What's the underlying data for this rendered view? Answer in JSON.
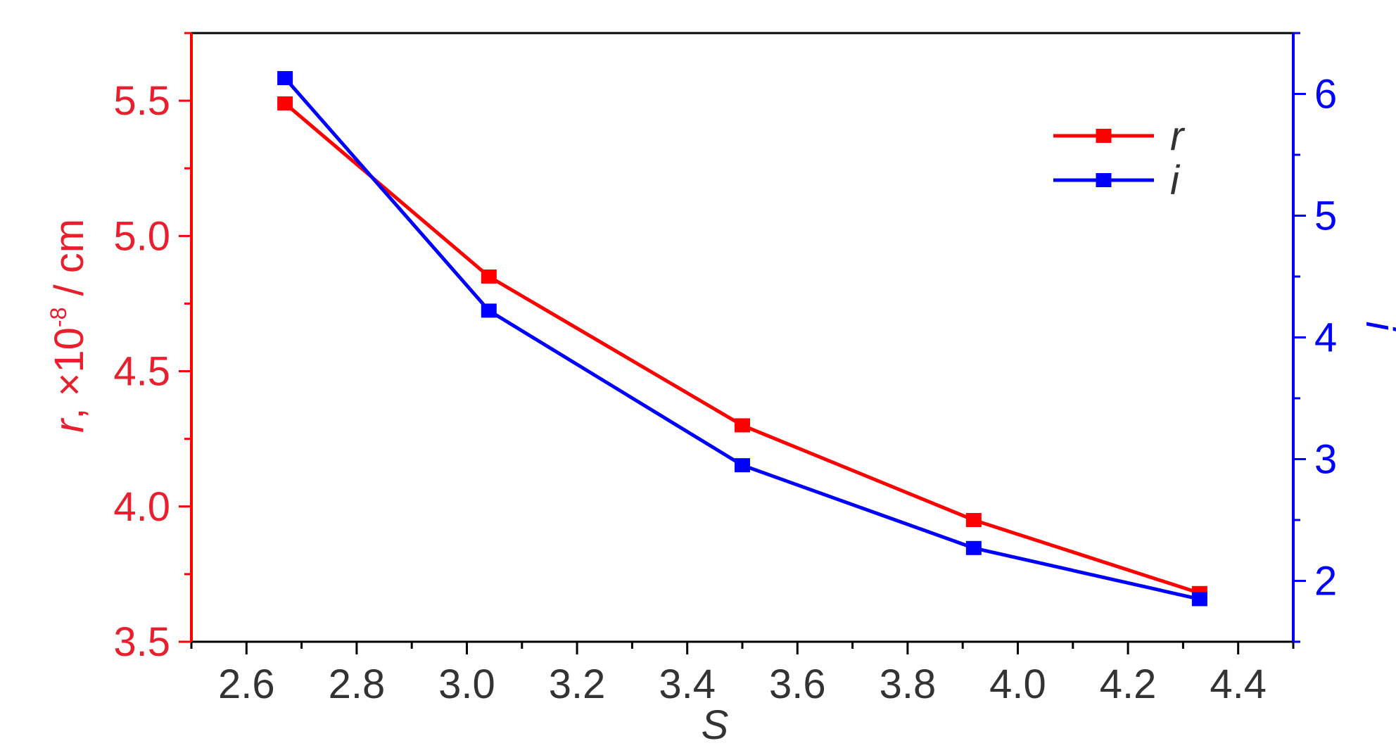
{
  "chart_data": {
    "type": "line",
    "xlabel": "S",
    "ylabel_left": {
      "var": "r",
      "rest": ", ×10",
      "exp": "-8",
      "unit": " / cm"
    },
    "ylabel_right": "i",
    "xlim": [
      2.5,
      4.5
    ],
    "ylim_left": [
      3.5,
      5.75
    ],
    "ylim_right": [
      1.5,
      6.5
    ],
    "xticks": [
      "2.6",
      "2.8",
      "3.0",
      "3.2",
      "3.4",
      "3.6",
      "3.8",
      "4.0",
      "4.2",
      "4.4"
    ],
    "yticks_left": [
      "3.5",
      "4.0",
      "4.5",
      "5.0",
      "5.5"
    ],
    "yticks_right": [
      "2",
      "3",
      "4",
      "5",
      "6"
    ],
    "x": [
      2.67,
      3.04,
      3.5,
      3.92,
      4.33
    ],
    "series": [
      {
        "name": "r",
        "axis": "left",
        "color": "#ff0000",
        "values": [
          5.49,
          4.85,
          4.3,
          3.95,
          3.68
        ]
      },
      {
        "name": "i",
        "axis": "right",
        "color": "#0000ff",
        "values": [
          6.13,
          4.22,
          2.95,
          2.27,
          1.85
        ]
      }
    ],
    "legend_position": "top-right",
    "grid": false,
    "colors": {
      "left_axis": "#ff0000",
      "left_text": "#e8202e",
      "right_axis": "#0000ff",
      "frame": "#000000",
      "x_text": "#333333"
    }
  }
}
